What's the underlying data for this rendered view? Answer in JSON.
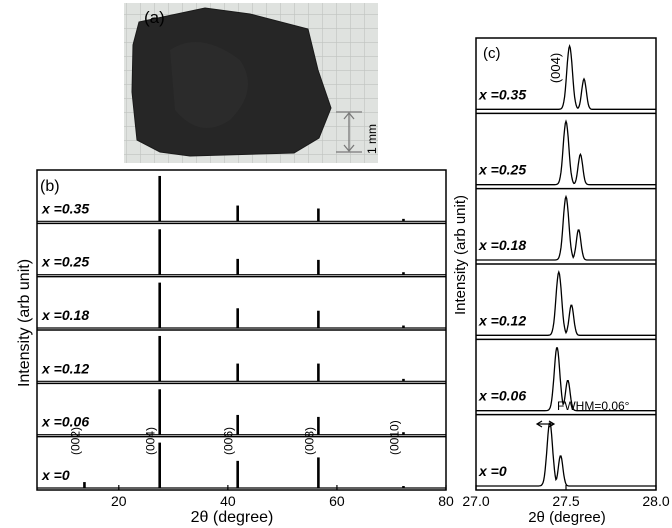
{
  "panel_a": {
    "label": "(a)",
    "scale_label": "1 mm"
  },
  "chart_data": [
    {
      "panel": "(b)",
      "type": "line",
      "xlabel": "2θ (degree)",
      "ylabel": "Intensity (arb unit)",
      "xlim": [
        5,
        80
      ],
      "xticks": [
        20,
        40,
        60,
        80
      ],
      "peaks": [
        {
          "label": "(002)",
          "x": 13.7
        },
        {
          "label": "(004)",
          "x": 27.5
        },
        {
          "label": "(006)",
          "x": 41.8
        },
        {
          "label": "(008)",
          "x": 56.6
        },
        {
          "label": "(0010)",
          "x": 72.2
        }
      ],
      "series": [
        {
          "name": "x =0.35",
          "heights": [
            0.0,
            0.92,
            0.32,
            0.26,
            0.05
          ]
        },
        {
          "name": "x =0.25",
          "heights": [
            0.0,
            0.92,
            0.32,
            0.3,
            0.05
          ]
        },
        {
          "name": "x =0.18",
          "heights": [
            0.0,
            0.92,
            0.4,
            0.35,
            0.05
          ]
        },
        {
          "name": "x =0.12",
          "heights": [
            0.0,
            0.92,
            0.36,
            0.36,
            0.05
          ]
        },
        {
          "name": "x =0.06",
          "heights": [
            0.0,
            0.92,
            0.4,
            0.36,
            0.05
          ]
        },
        {
          "name": "x =0",
          "heights": [
            0.12,
            0.92,
            0.55,
            0.62,
            0.04
          ]
        }
      ]
    },
    {
      "panel": "(c)",
      "type": "line",
      "xlabel": "2θ (degree)",
      "ylabel": "Intensity (arb unit)",
      "xlim": [
        27.0,
        28.0
      ],
      "xticks": [
        27.0,
        27.5,
        28.0
      ],
      "xtick_labels": [
        "27.0",
        "27.5",
        "28.0"
      ],
      "peak_label": "(004)",
      "annotation": "FWHM=0.06°",
      "series": [
        {
          "name": "x =0.35",
          "main": 27.52,
          "second": 27.6
        },
        {
          "name": "x =0.25",
          "main": 27.5,
          "second": 27.58
        },
        {
          "name": "x =0.18",
          "main": 27.5,
          "second": 27.57
        },
        {
          "name": "x =0.12",
          "main": 27.46,
          "second": 27.53
        },
        {
          "name": "x =0.06",
          "main": 27.45,
          "second": 27.51
        },
        {
          "name": "x =0",
          "main": 27.41,
          "second": 27.47
        }
      ]
    }
  ]
}
